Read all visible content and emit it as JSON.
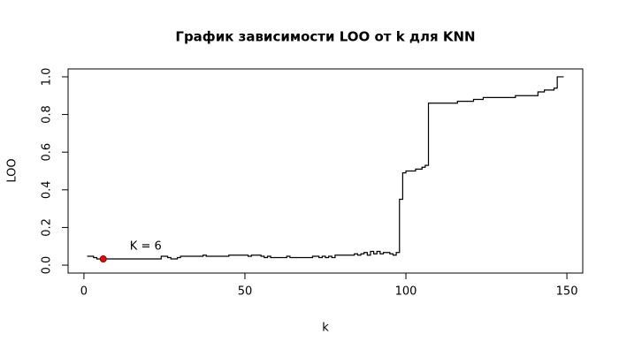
{
  "chart_data": {
    "type": "step",
    "title": "График зависимости LOO от k для KNN",
    "x_label": "k",
    "y_label": "LOO",
    "x": [
      1,
      2,
      3,
      4,
      5,
      6,
      7,
      8,
      9,
      10,
      11,
      12,
      13,
      14,
      15,
      16,
      17,
      18,
      19,
      20,
      21,
      22,
      23,
      24,
      25,
      26,
      27,
      28,
      29,
      30,
      31,
      32,
      33,
      34,
      35,
      36,
      37,
      38,
      39,
      40,
      41,
      42,
      43,
      44,
      45,
      46,
      47,
      48,
      49,
      50,
      51,
      52,
      53,
      54,
      55,
      56,
      57,
      58,
      59,
      60,
      61,
      62,
      63,
      64,
      65,
      66,
      67,
      68,
      69,
      70,
      71,
      72,
      73,
      74,
      75,
      76,
      77,
      78,
      79,
      80,
      81,
      82,
      83,
      84,
      85,
      86,
      87,
      88,
      89,
      90,
      91,
      92,
      93,
      94,
      95,
      96,
      97,
      98,
      99,
      100,
      101,
      102,
      103,
      104,
      105,
      106,
      107,
      108,
      109,
      110,
      111,
      112,
      113,
      114,
      115,
      116,
      117,
      118,
      119,
      120,
      121,
      122,
      123,
      124,
      125,
      126,
      127,
      128,
      129,
      130,
      131,
      132,
      133,
      134,
      135,
      136,
      137,
      138,
      139,
      140,
      141,
      142,
      143,
      144,
      145,
      146,
      147,
      148,
      149
    ],
    "values": [
      0.047,
      0.047,
      0.04,
      0.033,
      0.033,
      0.033,
      0.033,
      0.033,
      0.033,
      0.033,
      0.033,
      0.033,
      0.033,
      0.033,
      0.033,
      0.033,
      0.033,
      0.033,
      0.033,
      0.033,
      0.033,
      0.033,
      0.033,
      0.047,
      0.047,
      0.04,
      0.033,
      0.033,
      0.04,
      0.047,
      0.047,
      0.047,
      0.047,
      0.047,
      0.047,
      0.047,
      0.053,
      0.047,
      0.047,
      0.047,
      0.047,
      0.047,
      0.047,
      0.047,
      0.053,
      0.053,
      0.053,
      0.053,
      0.053,
      0.053,
      0.047,
      0.053,
      0.053,
      0.053,
      0.047,
      0.04,
      0.047,
      0.04,
      0.04,
      0.04,
      0.04,
      0.04,
      0.047,
      0.04,
      0.04,
      0.04,
      0.04,
      0.04,
      0.04,
      0.04,
      0.047,
      0.047,
      0.04,
      0.047,
      0.04,
      0.047,
      0.04,
      0.053,
      0.053,
      0.053,
      0.053,
      0.053,
      0.053,
      0.06,
      0.053,
      0.06,
      0.067,
      0.053,
      0.073,
      0.06,
      0.073,
      0.06,
      0.067,
      0.067,
      0.06,
      0.053,
      0.067,
      0.35,
      0.49,
      0.5,
      0.5,
      0.5,
      0.51,
      0.51,
      0.52,
      0.53,
      0.86,
      0.86,
      0.86,
      0.86,
      0.86,
      0.86,
      0.86,
      0.86,
      0.86,
      0.87,
      0.87,
      0.87,
      0.87,
      0.87,
      0.88,
      0.88,
      0.88,
      0.89,
      0.89,
      0.89,
      0.89,
      0.89,
      0.89,
      0.89,
      0.89,
      0.89,
      0.89,
      0.9,
      0.9,
      0.9,
      0.9,
      0.9,
      0.9,
      0.9,
      0.92,
      0.92,
      0.93,
      0.93,
      0.93,
      0.94,
      1.0,
      1.0,
      1.0
    ],
    "color": "#000000",
    "highlight": {
      "x": 6,
      "y": 0.033,
      "label": "K = 6",
      "color": "#ff0000"
    },
    "xlim": [
      -4.92,
      154.92
    ],
    "ylim": [
      -0.042,
      1.042
    ],
    "xticks": [
      0,
      50,
      100,
      150
    ],
    "yticks": [
      {
        "value": 0,
        "label": "0.0"
      },
      0.2,
      0.4,
      0.6,
      0.8,
      {
        "value": 1,
        "label": "1.0"
      }
    ]
  }
}
